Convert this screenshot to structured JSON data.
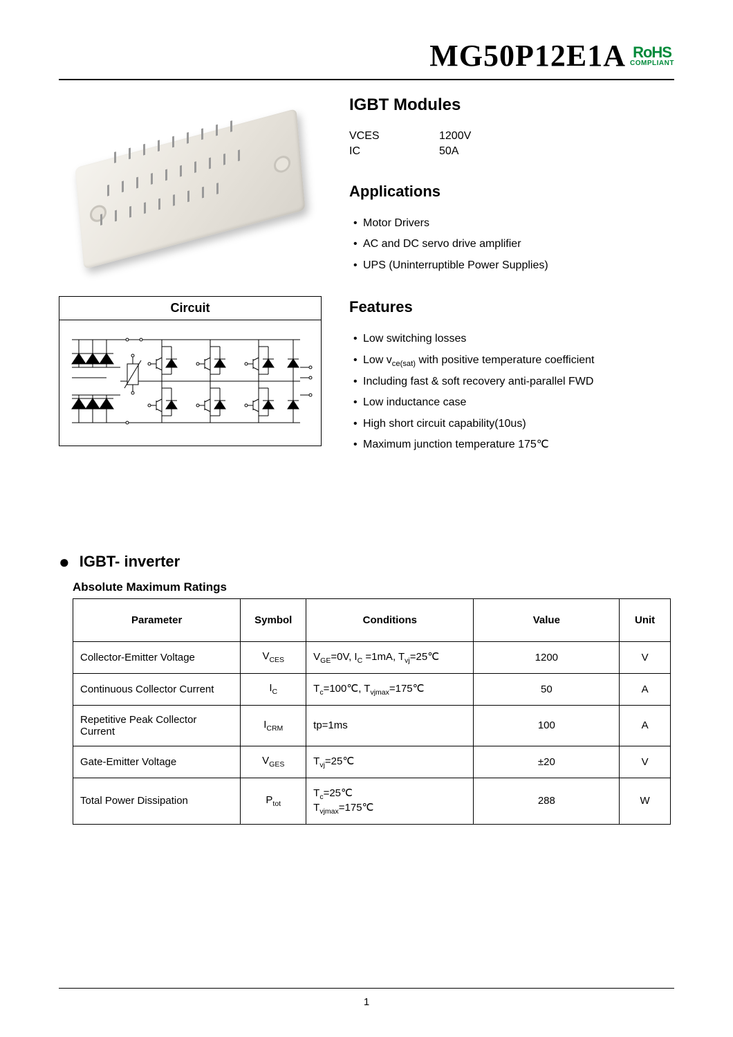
{
  "header": {
    "part_number": "MG50P12E1A",
    "rohs_top": "RoHS",
    "rohs_bottom": "COMPLIANT",
    "rohs_color": "#008a3a"
  },
  "overview": {
    "title": "IGBT   Modules",
    "specs": [
      {
        "label": "VCES",
        "value": "1200V"
      },
      {
        "label": "IC",
        "value": "50A"
      }
    ]
  },
  "applications": {
    "title": "Applications",
    "items": [
      "Motor Drivers",
      "AC and DC servo drive amplifier",
      "UPS (Uninterruptible Power Supplies)"
    ]
  },
  "features": {
    "title": "Features",
    "items": [
      "Low switching losses",
      "Low v<sub>ce(sat)</sub> with positive temperature coefficient",
      "Including fast & soft recovery anti-parallel FWD",
      "Low inductance case",
      "High short circuit capability(10us)",
      "Maximum junction temperature 175℃"
    ]
  },
  "circuit": {
    "title": "Circuit"
  },
  "inverter": {
    "heading": "IGBT- inverter",
    "table_caption": "Absolute Maximum Ratings",
    "columns": [
      "Parameter",
      "Symbol",
      "Conditions",
      "Value",
      "Unit"
    ],
    "rows": [
      {
        "param": "Collector-Emitter Voltage",
        "symbol": "V<sub>CES</sub>",
        "cond": "V<sub>GE</sub>=0V, I<sub>C</sub> =1mA, T<sub>vj</sub>=25℃",
        "value": "1200",
        "unit": "V"
      },
      {
        "param": "Continuous Collector Current",
        "symbol": "I<sub>C</sub>",
        "cond": "T<sub>c</sub>=100℃, T<sub>vjmax</sub>=175℃",
        "value": "50",
        "unit": "A"
      },
      {
        "param": "Repetitive Peak Collector Current",
        "symbol": "I<sub>CRM</sub>",
        "cond": "tp=1ms",
        "value": "100",
        "unit": "A"
      },
      {
        "param": "Gate-Emitter Voltage",
        "symbol": "V<sub>GES</sub>",
        "cond": "T<sub>vj</sub>=25℃",
        "value": "±20",
        "unit": "V"
      },
      {
        "param": "Total Power Dissipation",
        "symbol": "P<sub>tot</sub>",
        "cond": "T<sub>c</sub>=25℃<br>T<sub>vjmax</sub>=175℃",
        "value": "288",
        "unit": "W"
      }
    ]
  },
  "page_number": "1",
  "colors": {
    "text": "#000000",
    "border": "#000000",
    "module_light": "#f5f3ee",
    "module_mid": "#e8e4dc",
    "module_dark": "#d8d4cc"
  }
}
